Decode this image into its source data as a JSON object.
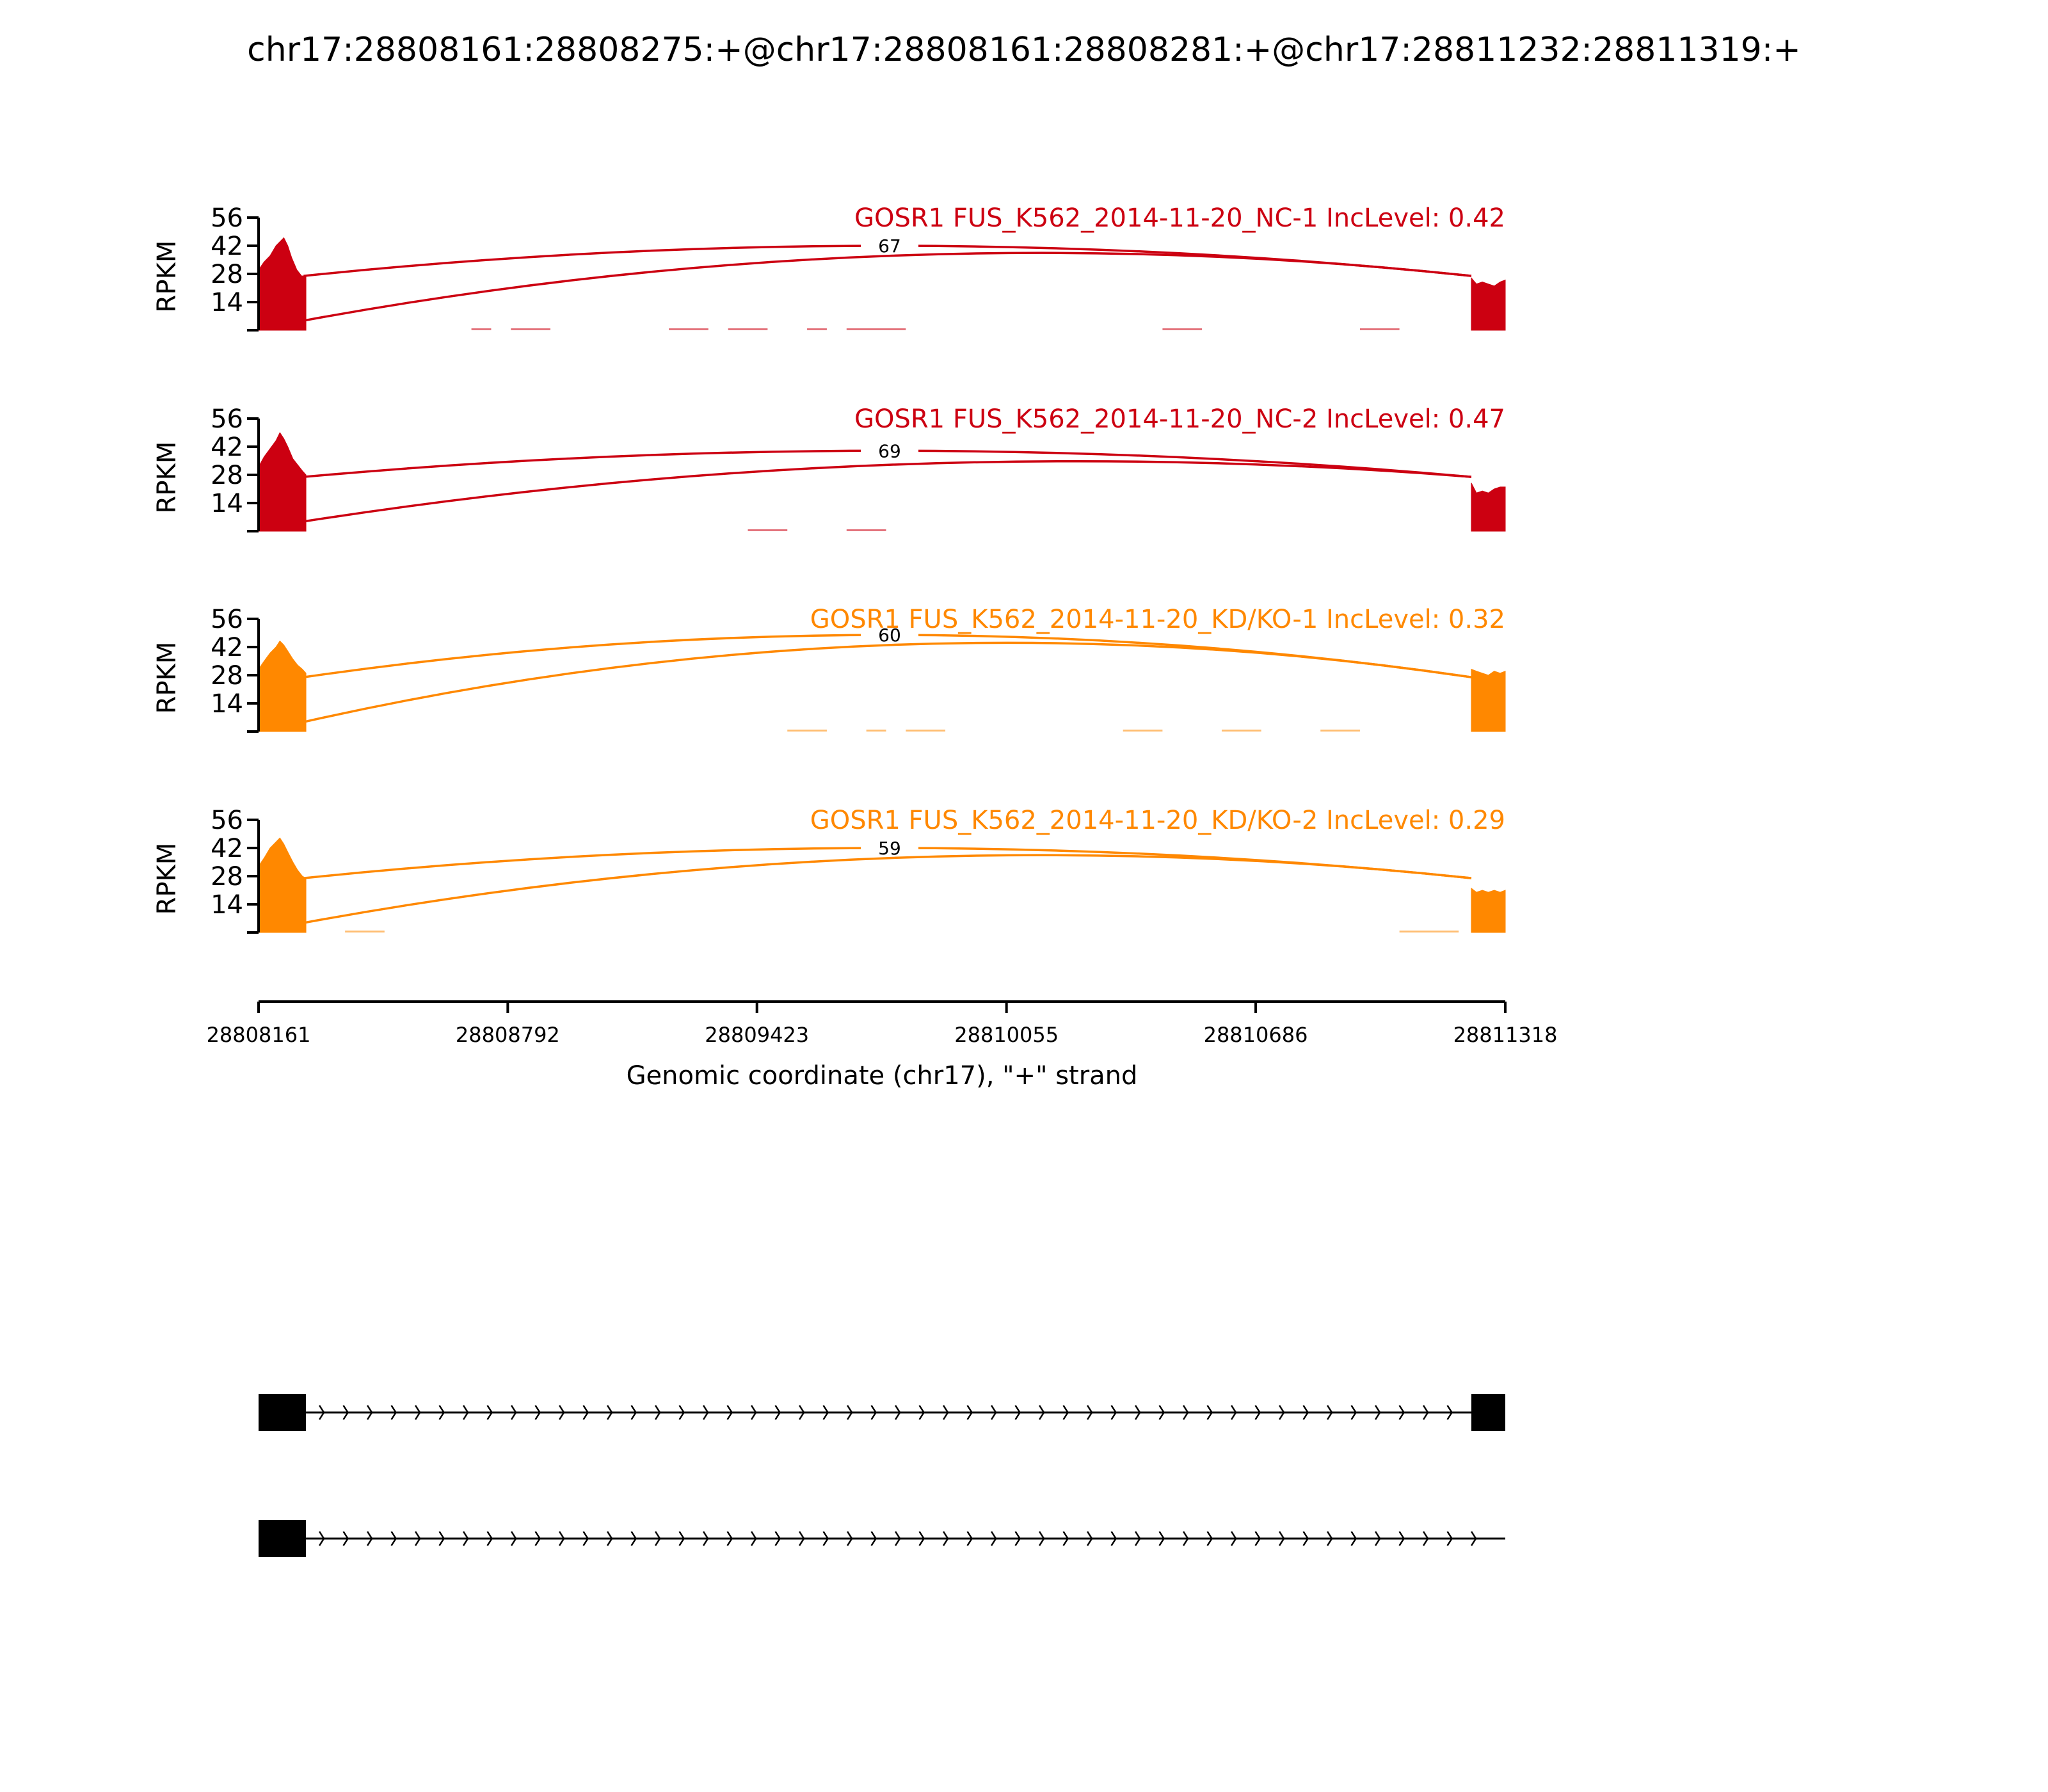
{
  "chart_data": {
    "type": "area",
    "title": "chr17:28808161:28808275:+@chr17:28808161:28808281:+@chr17:28811232:28811319:+",
    "xlabel": "Genomic coordinate (chr17), \"+\" strand",
    "ylabel": "RPKM",
    "xlim": [
      28808161,
      28811318
    ],
    "x_ticks": [
      "28808161",
      "28808792",
      "28809423",
      "28810055",
      "28810686",
      "28811318"
    ],
    "ylim": [
      0,
      56
    ],
    "y_ticks": [
      "14",
      "28",
      "42",
      "56"
    ],
    "exon1": [
      28808161,
      28808281
    ],
    "exon2": [
      28811232,
      28811318
    ],
    "panels": [
      {
        "label": "GOSR1 FUS_K562_2014-11-20_NC-1 IncLevel: 0.42",
        "color": "#cc0011",
        "exon1_profile": [
          [
            28808161,
            30
          ],
          [
            28808175,
            34
          ],
          [
            28808190,
            37
          ],
          [
            28808205,
            42
          ],
          [
            28808215,
            44
          ],
          [
            28808225,
            46
          ],
          [
            28808235,
            42
          ],
          [
            28808245,
            36
          ],
          [
            28808258,
            30
          ],
          [
            28808270,
            27
          ],
          [
            28808281,
            27
          ]
        ],
        "exon2_profile": [
          [
            28811232,
            26
          ],
          [
            28811245,
            23
          ],
          [
            28811260,
            24
          ],
          [
            28811275,
            23
          ],
          [
            28811290,
            22
          ],
          [
            28811305,
            24
          ],
          [
            28811318,
            25
          ]
        ],
        "junctions": [
          {
            "from": 28808275,
            "to": 28811232,
            "peak": 42,
            "label": "67"
          },
          {
            "from": 28808281,
            "to": 28811232,
            "peak": 37,
            "label": ""
          }
        ],
        "background": [
          [
            28808700,
            28808750
          ],
          [
            28808800,
            28808900
          ],
          [
            28809200,
            28809300
          ],
          [
            28809350,
            28809450
          ],
          [
            28809550,
            28809600
          ],
          [
            28809650,
            28809800
          ],
          [
            28810450,
            28810550
          ],
          [
            28810950,
            28811050
          ]
        ]
      },
      {
        "label": "GOSR1 FUS_K562_2014-11-20_NC-2 IncLevel: 0.47",
        "color": "#cc0011",
        "exon1_profile": [
          [
            28808161,
            32
          ],
          [
            28808175,
            37
          ],
          [
            28808190,
            41
          ],
          [
            28808205,
            45
          ],
          [
            28808215,
            49
          ],
          [
            28808225,
            46
          ],
          [
            28808235,
            42
          ],
          [
            28808248,
            36
          ],
          [
            28808260,
            33
          ],
          [
            28808272,
            30
          ],
          [
            28808281,
            28
          ]
        ],
        "exon2_profile": [
          [
            28811232,
            24
          ],
          [
            28811245,
            19
          ],
          [
            28811260,
            20
          ],
          [
            28811275,
            19
          ],
          [
            28811290,
            21
          ],
          [
            28811305,
            22
          ],
          [
            28811318,
            22
          ]
        ],
        "junctions": [
          {
            "from": 28808275,
            "to": 28811232,
            "peak": 40,
            "label": "69"
          },
          {
            "from": 28808281,
            "to": 28811232,
            "peak": 33,
            "label": ""
          }
        ],
        "background": [
          [
            28809400,
            28809500
          ],
          [
            28809650,
            28809750
          ]
        ]
      },
      {
        "label": "GOSR1 FUS_K562_2014-11-20_KD/KO-1 IncLevel: 0.32",
        "color": "#ff8800",
        "exon1_profile": [
          [
            28808161,
            31
          ],
          [
            28808175,
            35
          ],
          [
            28808190,
            39
          ],
          [
            28808205,
            42
          ],
          [
            28808215,
            45
          ],
          [
            28808225,
            43
          ],
          [
            28808235,
            40
          ],
          [
            28808248,
            36
          ],
          [
            28808260,
            33
          ],
          [
            28808272,
            31
          ],
          [
            28808281,
            29
          ]
        ],
        "exon2_profile": [
          [
            28811232,
            31
          ],
          [
            28811245,
            30
          ],
          [
            28811260,
            29
          ],
          [
            28811275,
            28
          ],
          [
            28811290,
            30
          ],
          [
            28811305,
            29
          ],
          [
            28811318,
            30
          ]
        ],
        "junctions": [
          {
            "from": 28808275,
            "to": 28811232,
            "peak": 48,
            "label": "60"
          },
          {
            "from": 28808281,
            "to": 28811232,
            "peak": 43,
            "label": ""
          }
        ],
        "background": [
          [
            28809500,
            28809600
          ],
          [
            28809700,
            28809750
          ],
          [
            28809800,
            28809900
          ],
          [
            28810350,
            28810450
          ],
          [
            28810600,
            28810700
          ],
          [
            28810850,
            28810950
          ]
        ]
      },
      {
        "label": "GOSR1 FUS_K562_2014-11-20_KD/KO-2 IncLevel: 0.29",
        "color": "#ff8800",
        "exon1_profile": [
          [
            28808161,
            33
          ],
          [
            28808175,
            37
          ],
          [
            28808190,
            42
          ],
          [
            28808205,
            45
          ],
          [
            28808215,
            47
          ],
          [
            28808225,
            44
          ],
          [
            28808235,
            40
          ],
          [
            28808248,
            35
          ],
          [
            28808260,
            31
          ],
          [
            28808272,
            28
          ],
          [
            28808281,
            27
          ]
        ],
        "exon2_profile": [
          [
            28811232,
            22
          ],
          [
            28811245,
            20
          ],
          [
            28811260,
            21
          ],
          [
            28811275,
            20
          ],
          [
            28811290,
            21
          ],
          [
            28811305,
            20
          ],
          [
            28811318,
            21
          ]
        ],
        "junctions": [
          {
            "from": 28808275,
            "to": 28811232,
            "peak": 42,
            "label": "59"
          },
          {
            "from": 28808281,
            "to": 28811232,
            "peak": 37,
            "label": ""
          }
        ],
        "background": [
          [
            28808380,
            28808480
          ],
          [
            28811050,
            28811200
          ]
        ]
      }
    ],
    "isoforms": [
      {
        "exons": [
          [
            28808161,
            28808281
          ],
          [
            28811232,
            28811318
          ]
        ]
      },
      {
        "exons": [
          [
            28808161,
            28808281
          ]
        ]
      }
    ]
  }
}
